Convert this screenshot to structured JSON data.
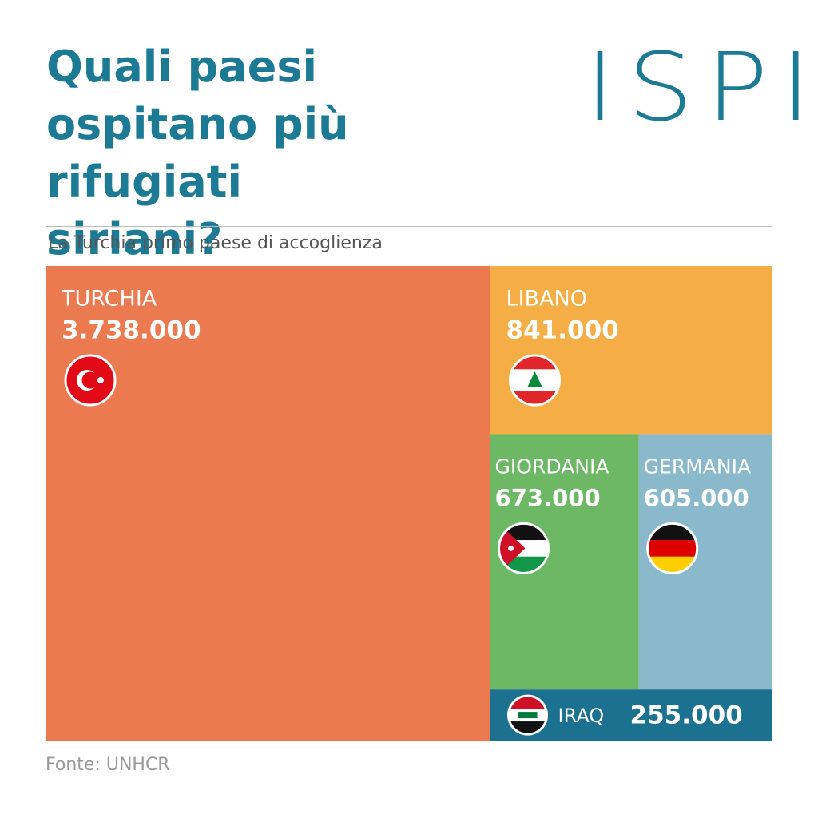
{
  "chart_data": {
    "type": "treemap",
    "title": "Quali paesi ospitano più rifugiati siriani?",
    "logo": "ISPI",
    "subtitle": "La Turchia primo paese di accoglienza",
    "source": "Fonte: UNHCR",
    "categories": [
      "TURCHIA",
      "LIBANO",
      "GIORDANIA",
      "GERMANIA",
      "IRAQ"
    ],
    "values": [
      3738000,
      841000,
      673000,
      605000,
      255000
    ],
    "value_labels": [
      "3.738.000",
      "841.000",
      "673.000",
      "605.000",
      "255.000"
    ],
    "colors": [
      "#ec7a50",
      "#f4ae45",
      "#6db865",
      "#8ab9cc",
      "#1d7190"
    ]
  }
}
